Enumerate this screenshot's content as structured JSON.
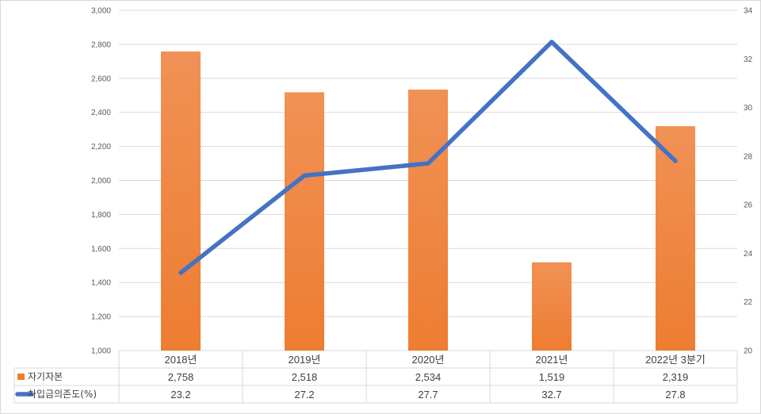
{
  "chart_data": {
    "type": "bar",
    "categories": [
      "2018년",
      "2019년",
      "2020년",
      "2021년",
      "2022년 3분기"
    ],
    "series": [
      {
        "name": "자기자본",
        "type": "bar",
        "axis": "left",
        "values": [
          2758,
          2518,
          2534,
          1519,
          2319
        ],
        "labels": [
          "2,758",
          "2,518",
          "2,534",
          "1,519",
          "2,319"
        ],
        "color": "#ED7D31"
      },
      {
        "name": "차입금의존도(%)",
        "type": "line",
        "axis": "right",
        "values": [
          23.2,
          27.2,
          27.7,
          32.7,
          27.8
        ],
        "labels": [
          "23.2",
          "27.2",
          "27.7",
          "32.7",
          "27.8"
        ],
        "color": "#4472C4"
      }
    ],
    "ylim": [
      1000,
      3000
    ],
    "ylim_right": [
      20,
      34
    ],
    "yticks_left": [
      "1,000",
      "1,200",
      "1,400",
      "1,600",
      "1,800",
      "2,000",
      "2,200",
      "2,400",
      "2,600",
      "2,800",
      "3,000"
    ],
    "yticks_right": [
      "20",
      "22",
      "24",
      "26",
      "28",
      "30",
      "32",
      "34"
    ],
    "grid": true,
    "legend": "data-table"
  }
}
